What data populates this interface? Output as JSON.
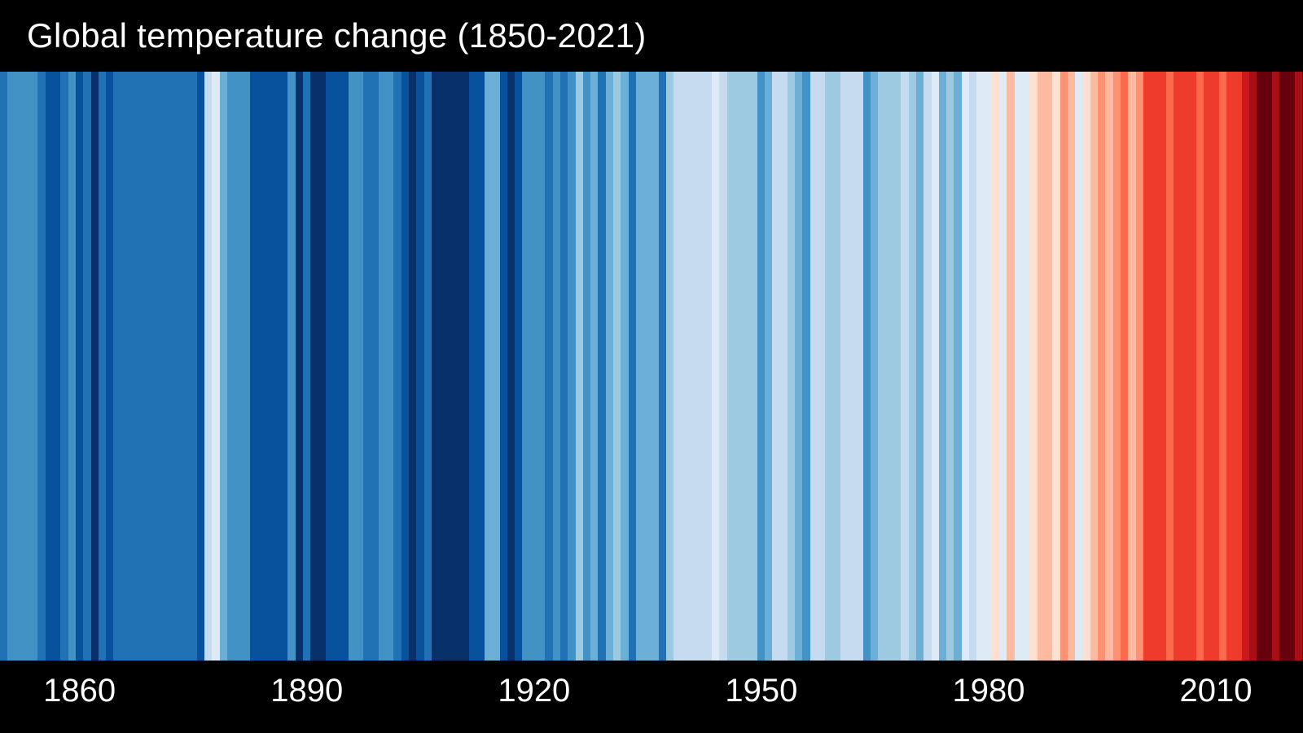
{
  "figure": {
    "title": "Global temperature change (1850-2021)"
  },
  "layout": {
    "background": "#000000",
    "text_color": "#ffffff"
  },
  "chart_data": {
    "type": "heatmap",
    "variant": "warming-stripes",
    "title": "Global temperature change (1850-2021)",
    "description": "One vertical stripe per year, 1850 to 2021. Color encodes annual global mean temperature anomaly: dark blue = much cooler than average, white = near average, dark red = much warmer than average.",
    "x_axis": {
      "start_year": 1850,
      "end_year": 2021,
      "tick_years": [
        1860,
        1890,
        1920,
        1950,
        1980,
        2010
      ],
      "tick_labels": [
        "1860",
        "1890",
        "1920",
        "1950",
        "1980",
        "2010"
      ]
    },
    "legend": "none",
    "color_scale": {
      "cold_to_neutral_blues": [
        "#08306b",
        "#08519c",
        "#2171b5",
        "#4292c6",
        "#6baed6",
        "#9ecae1",
        "#c6dbef",
        "#deebf7"
      ],
      "neutral_to_hot_reds": [
        "#fee0d2",
        "#fcbba1",
        "#fc9272",
        "#fb6a4a",
        "#ef3b2c",
        "#cb181d",
        "#a50f15",
        "#67000d"
      ]
    },
    "stripe_colors": [
      "#2171b5",
      "#4292c6",
      "#4292c6",
      "#4292c6",
      "#4292c6",
      "#2171b5",
      "#08519c",
      "#08519c",
      "#2171b5",
      "#4292c6",
      "#08519c",
      "#2171b5",
      "#08306b",
      "#2171b5",
      "#08519c",
      "#2171b5",
      "#2171b5",
      "#2171b5",
      "#2171b5",
      "#2171b5",
      "#2171b5",
      "#2171b5",
      "#2171b5",
      "#2171b5",
      "#2171b5",
      "#2171b5",
      "#08519c",
      "#c6dbef",
      "#deebf7",
      "#6baed6",
      "#4292c6",
      "#4292c6",
      "#4292c6",
      "#08519c",
      "#08519c",
      "#08519c",
      "#08519c",
      "#08519c",
      "#4292c6",
      "#08306b",
      "#2171b5",
      "#08306b",
      "#08306b",
      "#08519c",
      "#08519c",
      "#08519c",
      "#4292c6",
      "#4292c6",
      "#2171b5",
      "#2171b5",
      "#4292c6",
      "#4292c6",
      "#2171b5",
      "#08519c",
      "#08306b",
      "#08519c",
      "#2171b5",
      "#08306b",
      "#08306b",
      "#08306b",
      "#08306b",
      "#08306b",
      "#08519c",
      "#08519c",
      "#6baed6",
      "#6baed6",
      "#08519c",
      "#08306b",
      "#08519c",
      "#4292c6",
      "#4292c6",
      "#4292c6",
      "#2171b5",
      "#4292c6",
      "#2171b5",
      "#4292c6",
      "#9ecae1",
      "#4292c6",
      "#6baed6",
      "#2171b5",
      "#6baed6",
      "#9ecae1",
      "#6baed6",
      "#2171b5",
      "#6baed6",
      "#6baed6",
      "#6baed6",
      "#2171b5",
      "#9ecae1",
      "#c6dbef",
      "#c6dbef",
      "#c6dbef",
      "#c6dbef",
      "#c6dbef",
      "#deebf7",
      "#c6dbef",
      "#9ecae1",
      "#9ecae1",
      "#9ecae1",
      "#9ecae1",
      "#4292c6",
      "#6baed6",
      "#c6dbef",
      "#c6dbef",
      "#9ecae1",
      "#6baed6",
      "#4292c6",
      "#c6dbef",
      "#c6dbef",
      "#9ecae1",
      "#9ecae1",
      "#c6dbef",
      "#c6dbef",
      "#c6dbef",
      "#4292c6",
      "#6baed6",
      "#9ecae1",
      "#9ecae1",
      "#9ecae1",
      "#c6dbef",
      "#9ecae1",
      "#6baed6",
      "#c6dbef",
      "#deebf7",
      "#6baed6",
      "#9ecae1",
      "#6baed6",
      "#deebf7",
      "#c6dbef",
      "#deebf7",
      "#deebf7",
      "#fee0d2",
      "#deebf7",
      "#fcbba1",
      "#deebf7",
      "#deebf7",
      "#fee0d2",
      "#fcbba1",
      "#fcbba1",
      "#fee0d2",
      "#fc9272",
      "#fcbba1",
      "#deebf7",
      "#fee0d2",
      "#fcbba1",
      "#fc9272",
      "#fcbba1",
      "#fc9272",
      "#fb6a4a",
      "#fcbba1",
      "#fc9272",
      "#ef3b2c",
      "#ef3b2c",
      "#ef3b2c",
      "#fb6a4a",
      "#ef3b2c",
      "#ef3b2c",
      "#ef3b2c",
      "#fb6a4a",
      "#ef3b2c",
      "#ef3b2c",
      "#fb6a4a",
      "#ef3b2c",
      "#ef3b2c",
      "#cb181d",
      "#a50f15",
      "#67000d",
      "#67000d",
      "#a50f15",
      "#67000d",
      "#67000d",
      "#a50f15"
    ]
  }
}
